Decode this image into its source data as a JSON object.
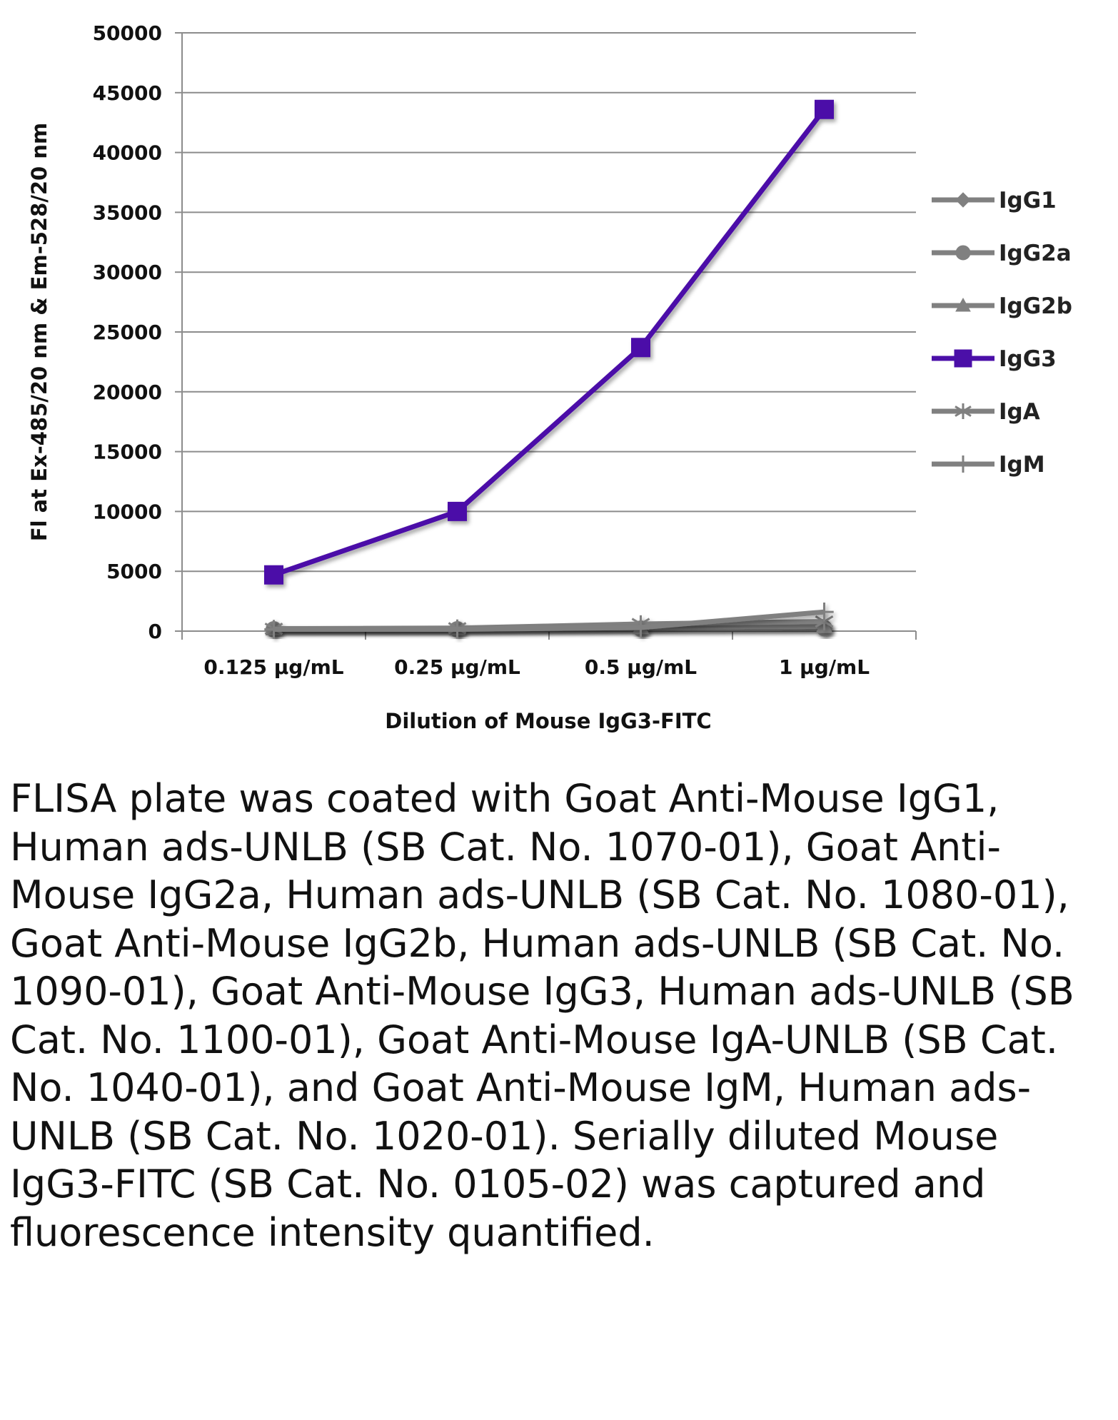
{
  "chart_data": {
    "type": "line",
    "categories": [
      "0.125 µg/mL",
      "0.25 µg/mL",
      "0.5 µg/mL",
      "1 µg/mL"
    ],
    "ylim": [
      0,
      50000
    ],
    "yticks": [
      0,
      5000,
      10000,
      15000,
      20000,
      25000,
      30000,
      35000,
      40000,
      45000,
      50000
    ],
    "xlabel": "Dilution of Mouse IgG3-FITC",
    "ylabel": "Fl at Ex-485/20 nm & Em-528/20 nm",
    "grid": true,
    "legend_position": "right",
    "series": [
      {
        "name": "IgG1",
        "values": [
          150,
          150,
          200,
          250
        ],
        "color": "#808080",
        "marker": "diamond"
      },
      {
        "name": "IgG2a",
        "values": [
          150,
          150,
          200,
          250
        ],
        "color": "#808080",
        "marker": "circle"
      },
      {
        "name": "IgG2b",
        "values": [
          200,
          200,
          300,
          400
        ],
        "color": "#808080",
        "marker": "triangle"
      },
      {
        "name": "IgG3",
        "values": [
          4700,
          10000,
          23700,
          43600
        ],
        "color": "#4b0fa8",
        "marker": "square"
      },
      {
        "name": "IgA",
        "values": [
          200,
          250,
          600,
          800
        ],
        "color": "#808080",
        "marker": "star"
      },
      {
        "name": "IgM",
        "values": [
          150,
          150,
          300,
          1600
        ],
        "color": "#808080",
        "marker": "plus"
      }
    ]
  },
  "caption": "FLISA plate was coated with Goat Anti-Mouse IgG1, Human ads-UNLB (SB Cat. No. 1070-01), Goat Anti-Mouse IgG2a, Human ads-UNLB (SB Cat. No. 1080-01), Goat Anti-Mouse IgG2b, Human ads-UNLB (SB Cat. No. 1090-01), Goat Anti-Mouse IgG3, Human ads-UNLB (SB Cat. No. 1100-01), Goat Anti-Mouse IgA-UNLB (SB Cat. No. 1040-01), and Goat Anti-Mouse IgM, Human ads-UNLB (SB Cat. No. 1020-01).  Serially diluted Mouse IgG3-FITC (SB Cat. No. 0105-02) was captured and fluorescence intensity quantified."
}
